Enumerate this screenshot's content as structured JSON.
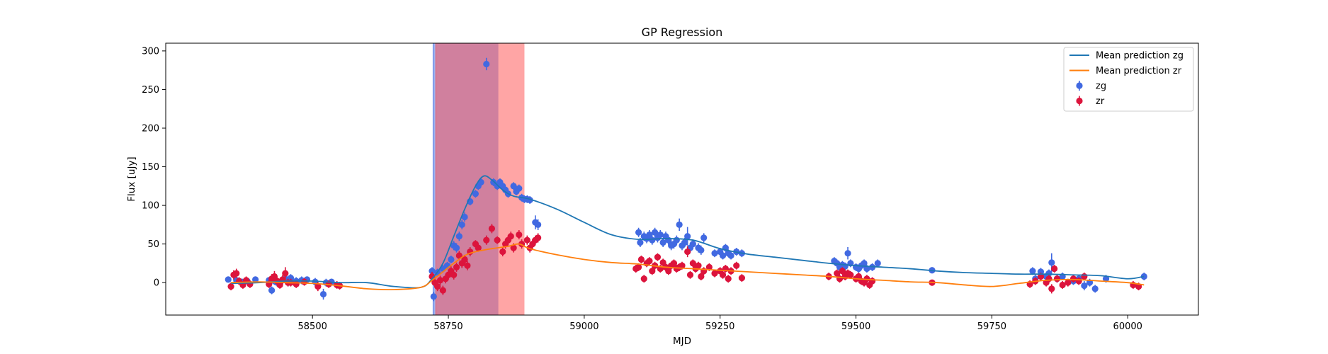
{
  "chart_data": {
    "type": "scatter",
    "title": "GP Regression",
    "xlabel": "MJD",
    "ylabel": "Flux [uJy]",
    "xlim": [
      58230,
      60130
    ],
    "ylim": [
      -42,
      310
    ],
    "xticks": [
      58500,
      58750,
      59000,
      59250,
      59500,
      59750,
      60000
    ],
    "yticks": [
      0,
      50,
      100,
      150,
      200,
      250,
      300
    ],
    "legend_position": "top-right",
    "spans": [
      {
        "name": "zg",
        "x0": 58722,
        "x1": 58842,
        "color": "#4169e1"
      },
      {
        "name": "zr",
        "x0": 58727,
        "x1": 58890,
        "color": "#ff4c4c"
      }
    ],
    "series": [
      {
        "name": "Mean prediction zg",
        "kind": "line",
        "color": "#1f77b4",
        "x": [
          58350,
          58400,
          58450,
          58500,
          58550,
          58600,
          58650,
          58700,
          58720,
          58740,
          58760,
          58780,
          58800,
          58815,
          58830,
          58850,
          58870,
          58900,
          58950,
          59000,
          59050,
          59100,
          59150,
          59200,
          59250,
          59300,
          59350,
          59400,
          59450,
          59500,
          59550,
          59600,
          59650,
          59700,
          59750,
          59800,
          59850,
          59900,
          59950,
          60000,
          60030
        ],
        "y": [
          -1,
          0,
          2,
          2,
          0,
          0,
          -5,
          -6,
          5,
          25,
          60,
          95,
          125,
          138,
          133,
          120,
          112,
          108,
          95,
          78,
          62,
          56,
          57,
          55,
          44,
          37,
          33,
          29,
          25,
          22,
          20,
          18,
          15,
          13,
          12,
          11,
          11,
          10,
          9,
          5,
          8
        ]
      },
      {
        "name": "Mean prediction zr",
        "kind": "line",
        "color": "#ff7f0e",
        "x": [
          58350,
          58400,
          58450,
          58500,
          58550,
          58600,
          58650,
          58700,
          58720,
          58740,
          58760,
          58780,
          58800,
          58830,
          58860,
          58880,
          58900,
          58950,
          59000,
          59050,
          59100,
          59150,
          59200,
          59250,
          59300,
          59350,
          59400,
          59450,
          59500,
          59550,
          59600,
          59650,
          59700,
          59750,
          59800,
          59850,
          59900,
          59950,
          60000,
          60030
        ],
        "y": [
          0,
          1,
          0,
          -1,
          -4,
          -8,
          -9,
          -6,
          3,
          14,
          25,
          35,
          40,
          44,
          47,
          50,
          44,
          36,
          30,
          26,
          24,
          20,
          18,
          16,
          14,
          12,
          10,
          8,
          5,
          3,
          1,
          0,
          -3,
          -5,
          -1,
          3,
          4,
          2,
          0,
          -3
        ]
      },
      {
        "name": "zg",
        "kind": "errorbar",
        "color": "#4169e1",
        "x": [
          58345,
          58360,
          58370,
          58380,
          58395,
          58420,
          58425,
          58430,
          58435,
          58440,
          58445,
          58450,
          58455,
          58460,
          58470,
          58480,
          58490,
          58505,
          58520,
          58525,
          58535,
          58720,
          58723,
          58730,
          58740,
          58748,
          58755,
          58760,
          58765,
          58770,
          58775,
          58780,
          58790,
          58800,
          58805,
          58810,
          58820,
          58833,
          58840,
          58845,
          58850,
          58855,
          58860,
          58870,
          58875,
          58880,
          58885,
          58890,
          58895,
          58900,
          58910,
          58915,
          59100,
          59103,
          59110,
          59115,
          59120,
          59125,
          59130,
          59135,
          59140,
          59145,
          59150,
          59155,
          59160,
          59165,
          59170,
          59175,
          59180,
          59185,
          59190,
          59195,
          59200,
          59210,
          59215,
          59220,
          59240,
          59250,
          59255,
          59260,
          59265,
          59270,
          59280,
          59290,
          59460,
          59465,
          59470,
          59475,
          59480,
          59485,
          59490,
          59500,
          59505,
          59510,
          59515,
          59520,
          59530,
          59540,
          59640,
          59825,
          59830,
          59840,
          59850,
          59855,
          59860,
          59870,
          59880,
          59900,
          59910,
          59920,
          59930,
          59940,
          59960,
          60030
        ],
        "y": [
          4,
          3,
          1,
          2,
          4,
          3,
          -10,
          2,
          0,
          -2,
          3,
          5,
          0,
          6,
          2,
          3,
          4,
          1,
          -15,
          0,
          1,
          15,
          -18,
          13,
          18,
          22,
          30,
          48,
          45,
          60,
          75,
          85,
          105,
          115,
          125,
          130,
          283,
          130,
          125,
          130,
          125,
          120,
          115,
          125,
          118,
          122,
          110,
          108,
          108,
          107,
          78,
          75,
          65,
          52,
          60,
          57,
          62,
          55,
          65,
          58,
          62,
          52,
          60,
          55,
          48,
          50,
          55,
          75,
          48,
          52,
          60,
          45,
          50,
          45,
          42,
          58,
          38,
          40,
          35,
          45,
          38,
          35,
          40,
          38,
          28,
          25,
          20,
          23,
          21,
          38,
          25,
          20,
          18,
          22,
          25,
          18,
          20,
          25,
          16,
          15,
          5,
          14,
          8,
          12,
          26,
          5,
          8,
          2,
          5,
          -4,
          0,
          -8,
          5,
          8
        ],
        "err": [
          4,
          4,
          4,
          4,
          4,
          4,
          5,
          5,
          5,
          5,
          5,
          5,
          5,
          5,
          5,
          5,
          4,
          5,
          7,
          5,
          4,
          5,
          6,
          5,
          5,
          5,
          5,
          6,
          6,
          6,
          6,
          6,
          5,
          5,
          5,
          5,
          8,
          5,
          5,
          5,
          5,
          5,
          5,
          5,
          5,
          5,
          5,
          5,
          5,
          5,
          9,
          7,
          6,
          6,
          6,
          6,
          6,
          6,
          6,
          6,
          6,
          6,
          6,
          6,
          6,
          6,
          6,
          8,
          6,
          6,
          12,
          6,
          6,
          6,
          6,
          6,
          5,
          5,
          5,
          5,
          5,
          5,
          5,
          5,
          5,
          5,
          5,
          5,
          5,
          8,
          5,
          5,
          5,
          5,
          5,
          5,
          5,
          5,
          3,
          5,
          5,
          5,
          5,
          5,
          12,
          5,
          5,
          5,
          5,
          6,
          5,
          5,
          5,
          5
        ]
      },
      {
        "name": "zr",
        "kind": "errorbar",
        "color": "#dc143c",
        "x": [
          58350,
          58355,
          58360,
          58365,
          58372,
          58378,
          58385,
          58420,
          58425,
          58430,
          58435,
          58440,
          58445,
          58450,
          58455,
          58460,
          58470,
          58485,
          58510,
          58530,
          58545,
          58550,
          58720,
          58725,
          58730,
          58735,
          58740,
          58745,
          58750,
          58755,
          58760,
          58765,
          58770,
          58775,
          58780,
          58785,
          58790,
          58800,
          58805,
          58820,
          58830,
          58840,
          58850,
          58855,
          58860,
          58865,
          58870,
          58880,
          58885,
          58895,
          58900,
          58905,
          58910,
          58915,
          59095,
          59100,
          59105,
          59110,
          59115,
          59120,
          59125,
          59130,
          59135,
          59140,
          59145,
          59150,
          59155,
          59160,
          59165,
          59170,
          59175,
          59180,
          59190,
          59195,
          59200,
          59205,
          59210,
          59215,
          59220,
          59230,
          59240,
          59250,
          59255,
          59260,
          59265,
          59270,
          59280,
          59290,
          59450,
          59465,
          59470,
          59475,
          59480,
          59485,
          59490,
          59500,
          59505,
          59510,
          59515,
          59520,
          59525,
          59530,
          59640,
          59820,
          59830,
          59840,
          59850,
          59855,
          59860,
          59865,
          59870,
          59880,
          59890,
          59900,
          59910,
          59920,
          60010,
          60020
        ],
        "y": [
          -5,
          10,
          12,
          2,
          -3,
          3,
          -2,
          -2,
          5,
          8,
          2,
          -3,
          4,
          12,
          0,
          0,
          -2,
          1,
          -5,
          -2,
          -3,
          -4,
          8,
          0,
          -5,
          3,
          -10,
          5,
          10,
          15,
          10,
          20,
          35,
          25,
          30,
          22,
          40,
          50,
          45,
          55,
          70,
          55,
          40,
          50,
          55,
          60,
          45,
          62,
          50,
          55,
          45,
          50,
          55,
          58,
          18,
          20,
          30,
          5,
          25,
          28,
          15,
          22,
          33,
          18,
          26,
          20,
          15,
          22,
          25,
          18,
          20,
          22,
          40,
          10,
          25,
          18,
          22,
          8,
          15,
          20,
          12,
          15,
          10,
          18,
          5,
          15,
          22,
          6,
          8,
          12,
          5,
          15,
          8,
          12,
          10,
          5,
          8,
          2,
          0,
          5,
          -3,
          2,
          0,
          -2,
          2,
          8,
          0,
          5,
          -8,
          18,
          5,
          -3,
          0,
          5,
          2,
          8,
          -3,
          -5
        ],
        "err": [
          5,
          6,
          6,
          5,
          5,
          5,
          5,
          5,
          6,
          7,
          5,
          5,
          6,
          8,
          5,
          5,
          5,
          5,
          6,
          5,
          5,
          5,
          6,
          6,
          6,
          6,
          6,
          6,
          6,
          6,
          6,
          6,
          6,
          6,
          6,
          6,
          6,
          5,
          5,
          6,
          6,
          5,
          6,
          6,
          6,
          6,
          6,
          6,
          6,
          6,
          6,
          6,
          6,
          6,
          5,
          5,
          5,
          5,
          5,
          5,
          5,
          5,
          5,
          5,
          5,
          5,
          5,
          5,
          5,
          5,
          5,
          5,
          7,
          5,
          5,
          5,
          5,
          5,
          5,
          5,
          5,
          5,
          5,
          5,
          5,
          5,
          5,
          5,
          5,
          5,
          5,
          5,
          5,
          5,
          5,
          5,
          5,
          5,
          5,
          5,
          5,
          5,
          3,
          5,
          5,
          5,
          5,
          5,
          6,
          5,
          5,
          5,
          5,
          5,
          5,
          5,
          5,
          5
        ]
      }
    ]
  }
}
